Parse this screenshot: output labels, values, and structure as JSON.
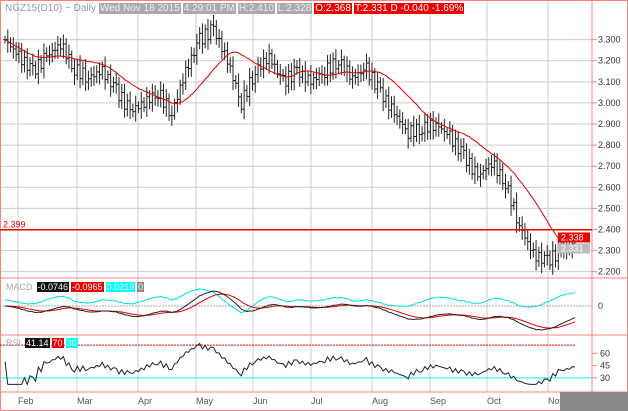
{
  "header": {
    "symbol": "NGZ15(D10) ~ Daily",
    "date": "Wed Nov 18 2015",
    "time": "4:29:01 PM",
    "high": "H:2.410",
    "low": "L:2.328",
    "open": "O:2.368",
    "last": "T:2.331 D  -0.040  -1.69%"
  },
  "macd": {
    "label": "MACD",
    "macd": "-0.0746",
    "signal": "-0.0965",
    "hist": "0.0219",
    "zero": "0"
  },
  "rsi": {
    "label": "RSI",
    "value": "41.14",
    "upper": "70",
    "lower": "30"
  },
  "colors": {
    "price": "#222222",
    "ma": "#e00000",
    "macd": "#222222",
    "signal": "#e00000",
    "hist": "#00dddd",
    "grid": "#cccccc",
    "axis": "#ff8080"
  },
  "chart_data": {
    "type": "ohlc",
    "title": "NGZ15(D10) ~ Daily",
    "x_tick_labels": [
      "Feb",
      "Mar",
      "Apr",
      "May",
      "Jun",
      "Jul",
      "Aug",
      "Sep",
      "Oct",
      "Nov"
    ],
    "y_tick_labels": [
      "3.300",
      "3.200",
      "3.100",
      "3.000",
      "2.900",
      "2.800",
      "2.700",
      "2.600",
      "2.500",
      "2.400",
      "2.300",
      "2.200"
    ],
    "ylim": [
      2.17,
      3.45
    ],
    "hline": {
      "value": 2.399,
      "label": "2.399"
    },
    "last_price_labels": [
      "2.338",
      "2.331"
    ],
    "weekly_closes": [
      3.3,
      3.22,
      3.15,
      3.22,
      3.28,
      3.16,
      3.12,
      3.15,
      3.06,
      2.96,
      3.0,
      3.05,
      2.95,
      3.15,
      3.3,
      3.35,
      3.2,
      3.0,
      3.15,
      3.22,
      3.1,
      3.15,
      3.1,
      3.15,
      3.2,
      3.12,
      3.16,
      3.05,
      2.95,
      2.86,
      2.88,
      2.9,
      2.84,
      2.75,
      2.65,
      2.72,
      2.62,
      2.42,
      2.28,
      2.25,
      2.3,
      2.33
    ],
    "ma_period": 20,
    "macd_ylabel": "0",
    "rsi_levels": [
      60,
      45,
      30
    ]
  }
}
